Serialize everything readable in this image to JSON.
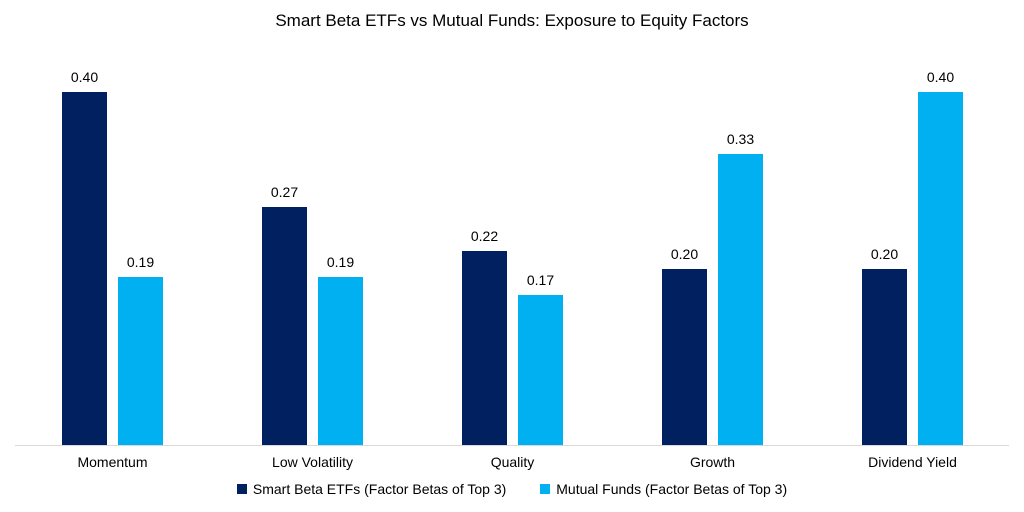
{
  "chart_data": {
    "type": "bar",
    "title": "Smart Beta ETFs vs Mutual Funds: Exposure to Equity Factors",
    "categories": [
      "Momentum",
      "Low Volatility",
      "Quality",
      "Growth",
      "Dividend Yield"
    ],
    "series": [
      {
        "name": "Smart Beta ETFs (Factor Betas of Top 3)",
        "color": "#002060",
        "values": [
          0.4,
          0.27,
          0.22,
          0.2,
          0.2
        ],
        "labels": [
          "0.40",
          "0.27",
          "0.22",
          "0.20",
          "0.20"
        ]
      },
      {
        "name": "Mutual Funds (Factor Betas of Top 3)",
        "color": "#00B0F0",
        "values": [
          0.19,
          0.19,
          0.17,
          0.33,
          0.4
        ],
        "labels": [
          "0.19",
          "0.19",
          "0.17",
          "0.33",
          "0.40"
        ]
      }
    ],
    "xlabel": "",
    "ylabel": "",
    "ylim": [
      0,
      0.44
    ],
    "grid": false,
    "y_axis_visible": false,
    "data_labels_visible": true,
    "legend_position": "bottom"
  },
  "colors": {
    "background": "#FFFFFF",
    "axis_line": "#D9D9D9",
    "text": "#000000"
  }
}
